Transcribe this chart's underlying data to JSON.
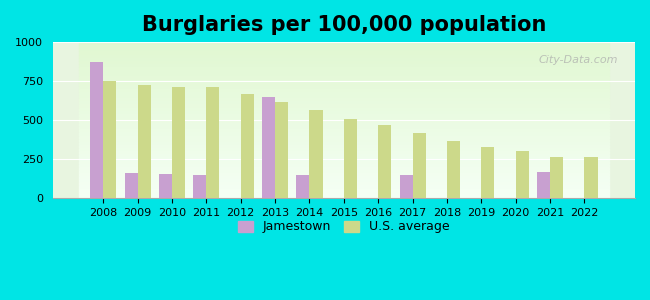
{
  "title": "Burglaries per 100,000 population",
  "years": [
    2008,
    2009,
    2010,
    2011,
    2012,
    2013,
    2014,
    2015,
    2016,
    2017,
    2018,
    2019,
    2020,
    2021,
    2022
  ],
  "jamestown": [
    875,
    160,
    155,
    148,
    null,
    645,
    148,
    null,
    null,
    148,
    null,
    null,
    null,
    165,
    null
  ],
  "us_average": [
    748,
    725,
    715,
    710,
    665,
    615,
    565,
    505,
    470,
    415,
    365,
    330,
    300,
    265,
    262
  ],
  "jamestown_color": "#c8a0d0",
  "us_avg_color": "#ccd98a",
  "bg_color": "#00e5e5",
  "plot_bg_top": "#e8f5e0",
  "plot_bg_bottom": "#f0fff0",
  "ylim": [
    0,
    1000
  ],
  "yticks": [
    0,
    250,
    500,
    750,
    1000
  ],
  "bar_width": 0.38,
  "legend_jamestown": "Jamestown",
  "legend_us": "U.S. average",
  "title_fontsize": 15,
  "watermark": "City-Data.com"
}
